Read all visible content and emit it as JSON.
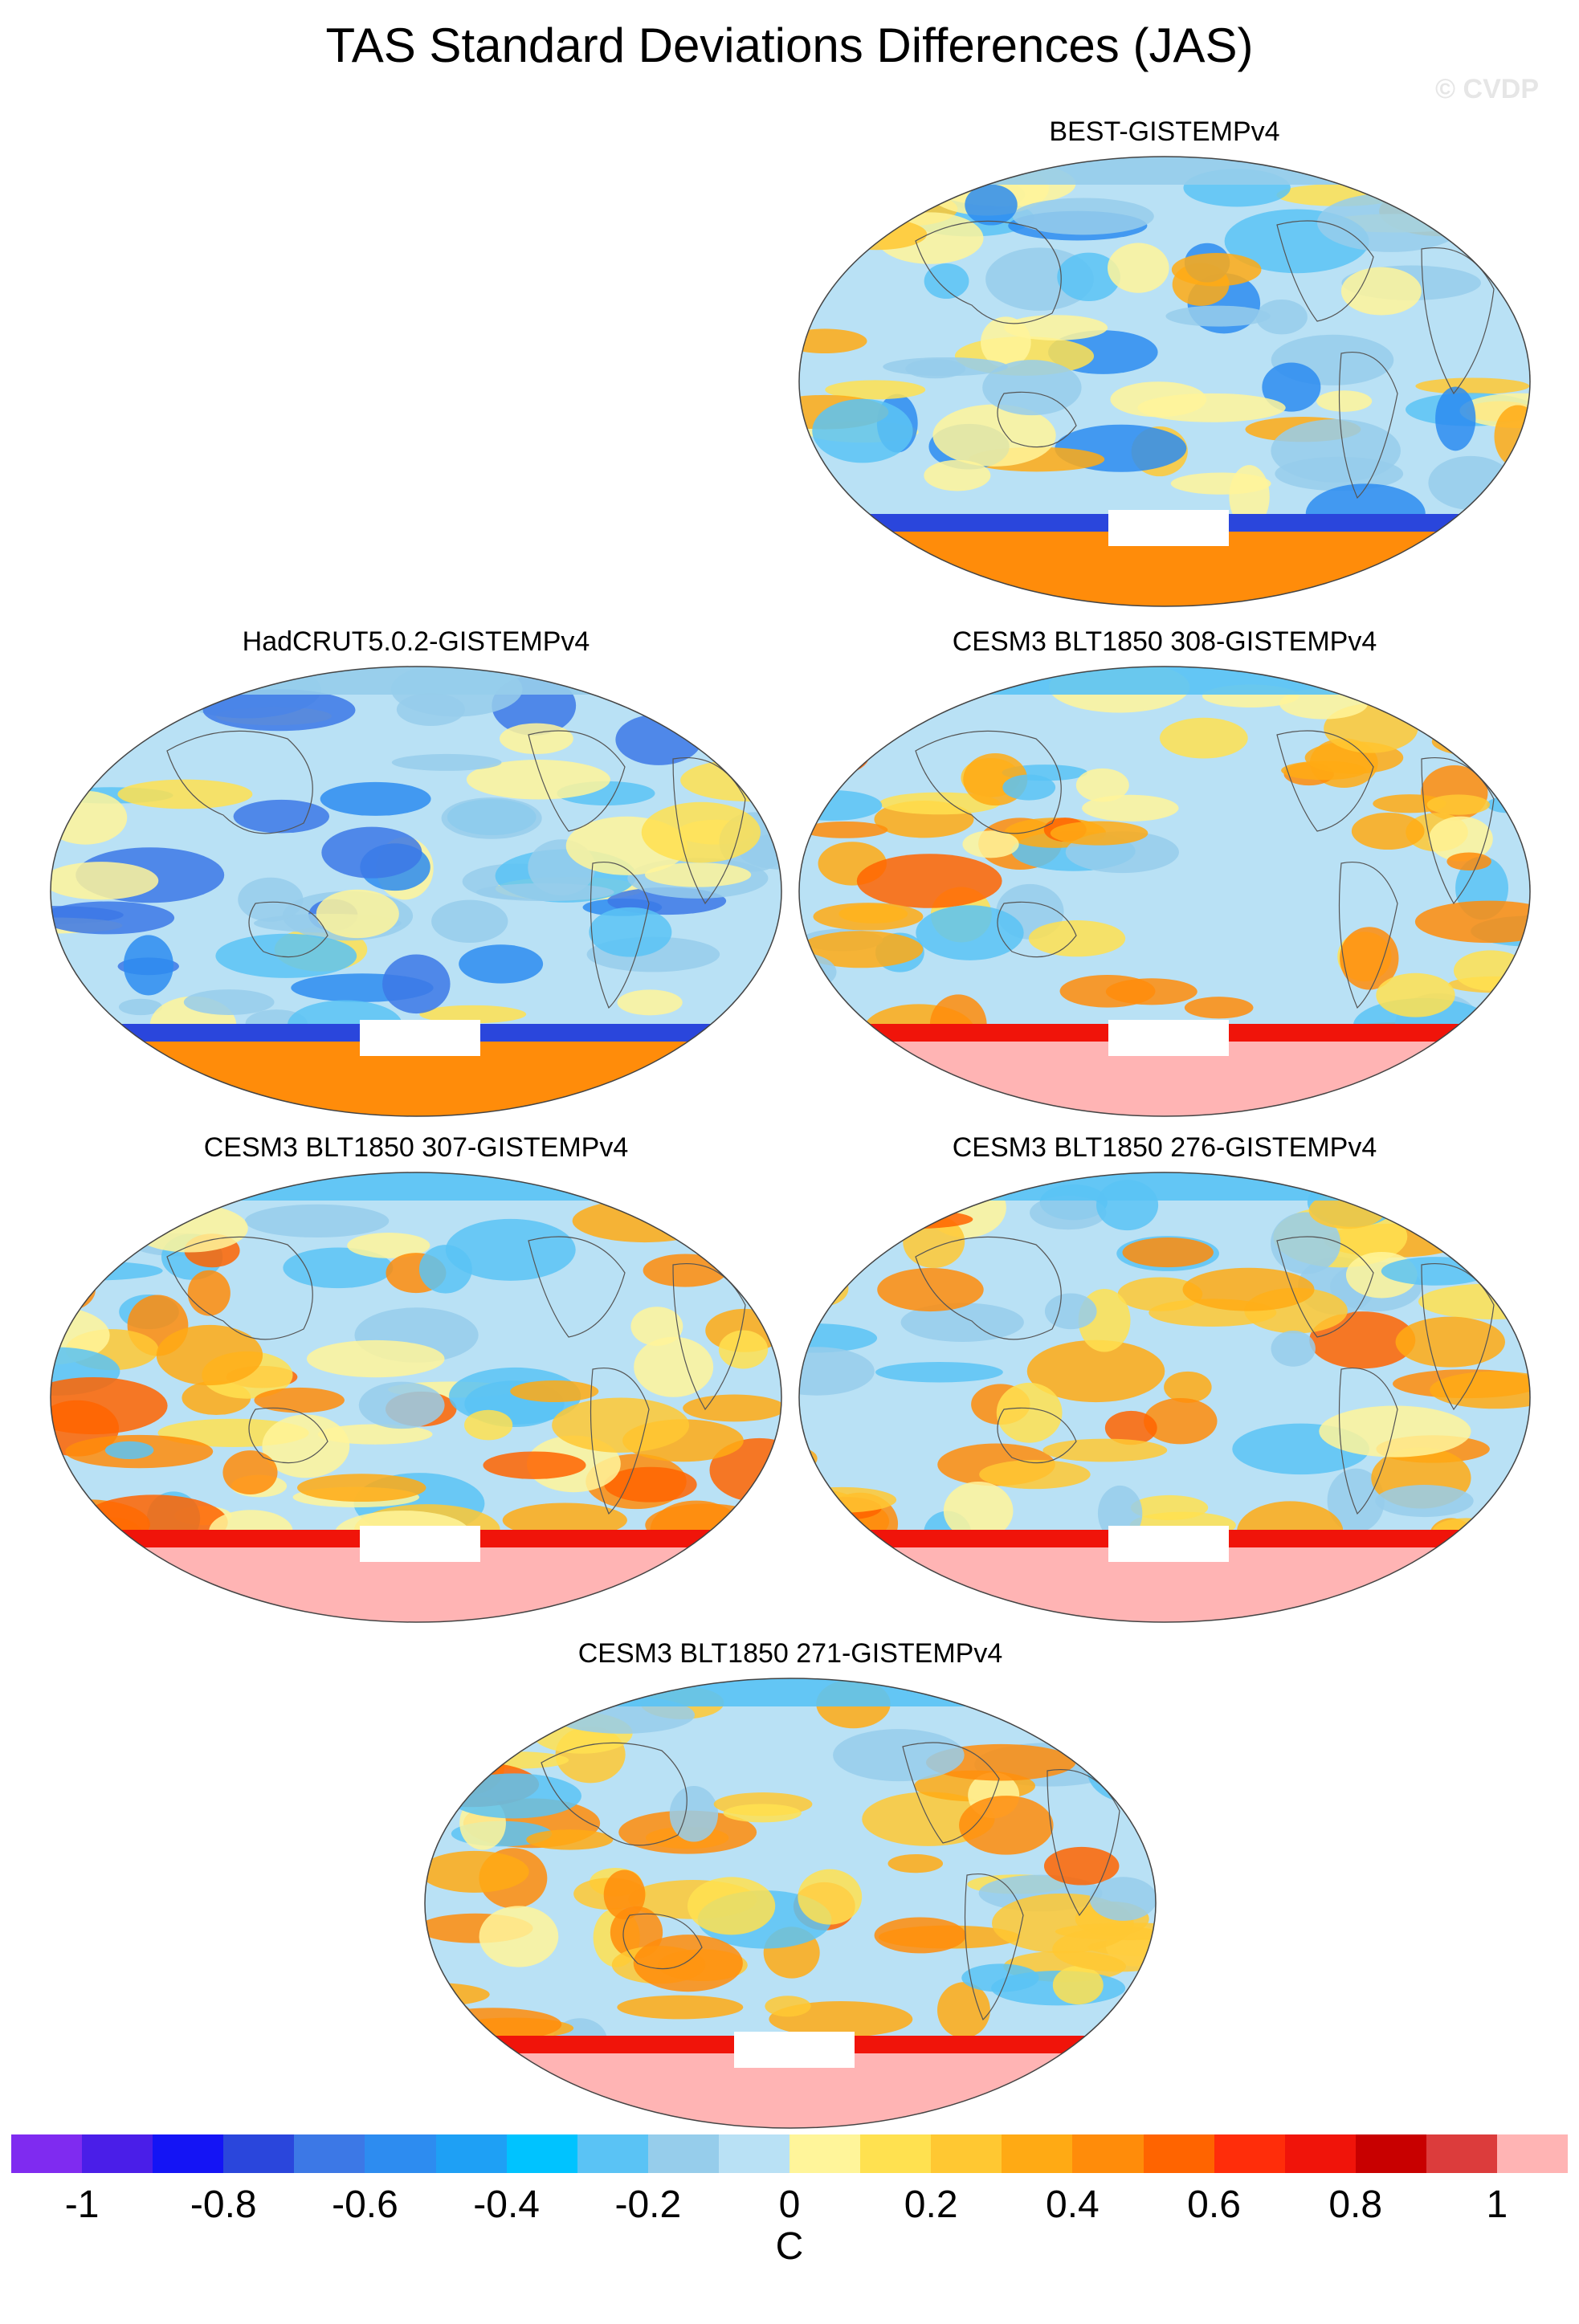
{
  "title": "TAS Standard Deviations Differences (JAS)",
  "watermark": "© CVDP",
  "panels": [
    {
      "label": "BEST-GISTEMPv4",
      "style": "obs-light"
    },
    {
      "label": "HadCRUT5.0.2-GISTEMPv4",
      "style": "obs-cool"
    },
    {
      "label": "CESM3 BLT1850 308-GISTEMPv4",
      "style": "model"
    },
    {
      "label": "CESM3 BLT1850 307-GISTEMPv4",
      "style": "model"
    },
    {
      "label": "CESM3 BLT1850 276-GISTEMPv4",
      "style": "model"
    },
    {
      "label": "CESM3 BLT1850 271-GISTEMPv4",
      "style": "model"
    }
  ],
  "colorbar": {
    "colors": [
      "#7f2bf0",
      "#4a1ee8",
      "#1414f5",
      "#2a46dc",
      "#3c78e6",
      "#2d8cf0",
      "#1ea0f5",
      "#00c3ff",
      "#5ac3f5",
      "#96cdeb",
      "#b9e1f5",
      "#fff59a",
      "#ffe150",
      "#ffc832",
      "#ffaa14",
      "#ff8c0a",
      "#ff6400",
      "#ff2d0a",
      "#f0140a",
      "#c80000",
      "#dc3c3c",
      "#ffb4b4"
    ],
    "tick_labels": [
      "-1",
      "-0.8",
      "-0.6",
      "-0.4",
      "-0.2",
      "0",
      "0.2",
      "0.4",
      "0.6",
      "0.8",
      "1"
    ],
    "units": "C"
  }
}
